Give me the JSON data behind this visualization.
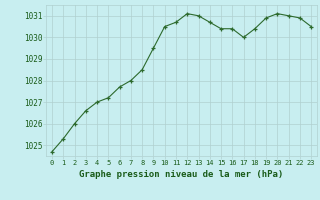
{
  "x": [
    0,
    1,
    2,
    3,
    4,
    5,
    6,
    7,
    8,
    9,
    10,
    11,
    12,
    13,
    14,
    15,
    16,
    17,
    18,
    19,
    20,
    21,
    22,
    23
  ],
  "y": [
    1024.7,
    1025.3,
    1026.0,
    1026.6,
    1027.0,
    1027.2,
    1027.7,
    1028.0,
    1028.5,
    1029.5,
    1030.5,
    1030.7,
    1031.1,
    1031.0,
    1030.7,
    1030.4,
    1030.4,
    1030.0,
    1030.4,
    1030.9,
    1031.1,
    1031.0,
    1030.9,
    1030.5
  ],
  "line_color": "#2d6a2d",
  "marker_color": "#2d6a2d",
  "bg_color": "#c8eef0",
  "grid_color": "#b0d0d0",
  "xlabel": "Graphe pression niveau de la mer (hPa)",
  "xlabel_color": "#1a5c1a",
  "ylim": [
    1024.5,
    1031.5
  ],
  "xlim": [
    -0.5,
    23.5
  ],
  "yticks": [
    1025,
    1026,
    1027,
    1028,
    1029,
    1030,
    1031
  ],
  "xticks": [
    0,
    1,
    2,
    3,
    4,
    5,
    6,
    7,
    8,
    9,
    10,
    11,
    12,
    13,
    14,
    15,
    16,
    17,
    18,
    19,
    20,
    21,
    22,
    23
  ],
  "xtick_labels": [
    "0",
    "1",
    "2",
    "3",
    "4",
    "5",
    "6",
    "7",
    "8",
    "9",
    "10",
    "11",
    "12",
    "13",
    "14",
    "15",
    "16",
    "17",
    "18",
    "19",
    "20",
    "21",
    "22",
    "23"
  ]
}
